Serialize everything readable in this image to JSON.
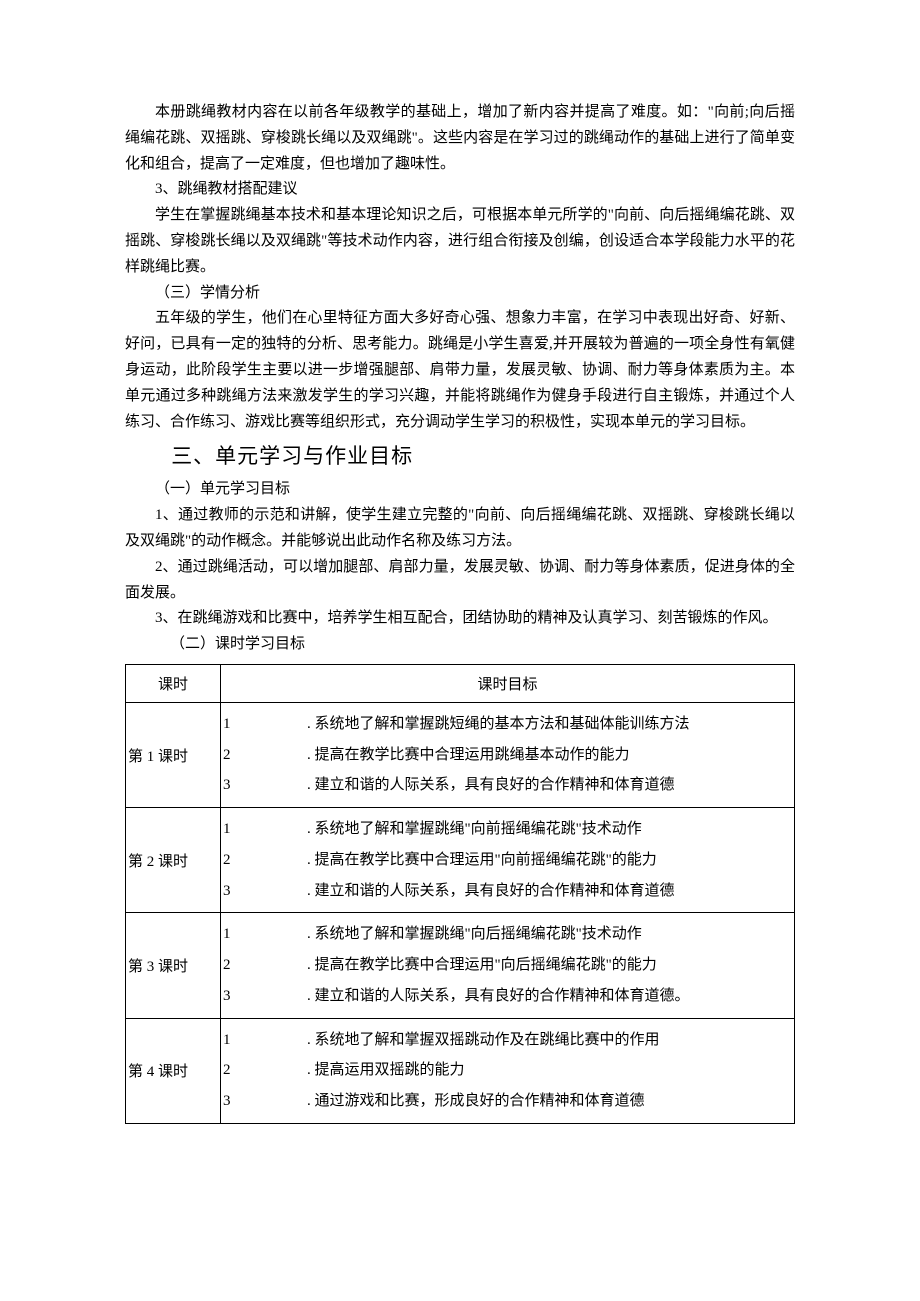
{
  "paragraphs": {
    "p1": "本册跳绳教材内容在以前各年级教学的基础上，增加了新内容并提高了难度。如：\"向前;向后摇绳编花跳、双摇跳、穿梭跳长绳以及双绳跳\"。这些内容是在学习过的跳绳动作的基础上进行了简单变化和组合，提高了一定难度，但也增加了趣味性。",
    "p2": "3、跳绳教材搭配建议",
    "p3": "学生在掌握跳绳基本技术和基本理论知识之后，可根据本单元所学的\"向前、向后摇绳编花跳、双摇跳、穿梭跳长绳以及双绳跳\"等技术动作内容，进行组合衔接及创编，创设适合本学段能力水平的花样跳绳比赛。",
    "p4": "（三）学情分析",
    "p5": "五年级的学生，他们在心里特征方面大多好奇心强、想象力丰富，在学习中表现出好奇、好新、好问，已具有一定的独特的分析、思考能力。跳绳是小学生喜爱,并开展较为普遍的一项全身性有氧健身运动，此阶段学生主要以进一步增强腿部、肩带力量，发展灵敏、协调、耐力等身体素质为主。本单元通过多种跳绳方法来激发学生的学习兴趣，并能将跳绳作为健身手段进行自主锻炼，并通过个人练习、合作练习、游戏比赛等组织形式，充分调动学生学习的积极性，实现本单元的学习目标。",
    "h2": "三、单元学习与作业目标",
    "p6": "（一）单元学习目标",
    "p7": "1、通过教师的示范和讲解，使学生建立完整的\"向前、向后摇绳编花跳、双摇跳、穿梭跳长绳以及双绳跳\"的动作概念。并能够说出此动作名称及练习方法。",
    "p8": "2、通过跳绳活动，可以增加腿部、肩部力量，发展灵敏、协调、耐力等身体素质，促进身体的全面发展。",
    "p9": "3、在跳绳游戏和比赛中，培养学生相互配合，团结协助的精神及认真学习、刻苦锻炼的作风。",
    "p10": "（二）课时学习目标"
  },
  "table": {
    "headers": {
      "c1": "课时",
      "c2": "课时目标"
    },
    "rows": [
      {
        "lesson": "第 1 课时",
        "goals": [
          ". 系统地了解和掌握跳短绳的基本方法和基础体能训练方法",
          ". 提高在教学比赛中合理运用跳绳基本动作的能力",
          ". 建立和谐的人际关系，具有良好的合作精神和体育道德"
        ]
      },
      {
        "lesson": "第 2 课时",
        "goals": [
          ". 系统地了解和掌握跳绳\"向前摇绳编花跳\"技术动作",
          ". 提高在教学比赛中合理运用\"向前摇绳编花跳\"的能力",
          ". 建立和谐的人际关系，具有良好的合作精神和体育道德"
        ]
      },
      {
        "lesson": "第 3 课时",
        "goals": [
          ". 系统地了解和掌握跳绳\"向后摇绳编花跳\"技术动作",
          ". 提高在教学比赛中合理运用\"向后摇绳编花跳\"的能力",
          ". 建立和谐的人际关系，具有良好的合作精神和体育道德。"
        ]
      },
      {
        "lesson": "第 4 课时",
        "goals": [
          ". 系统地了解和掌握双摇跳动作及在跳绳比赛中的作用",
          ". 提高运用双摇跳的能力",
          ". 通过游戏和比赛，形成良好的合作精神和体育道德"
        ]
      }
    ]
  }
}
